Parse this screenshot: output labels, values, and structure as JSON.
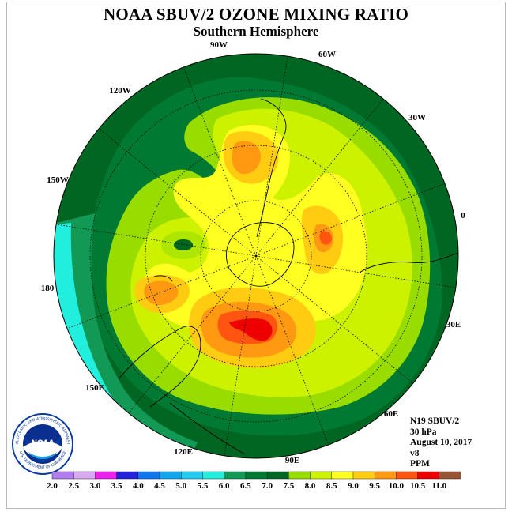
{
  "title": "NOAA SBUV/2 OZONE MIXING RATIO",
  "subtitle": "Southern Hemisphere",
  "longitude_labels": [
    "90W",
    "60W",
    "30W",
    "0",
    "30E",
    "60E",
    "90E",
    "120E",
    "150E",
    "180",
    "150W",
    "120W"
  ],
  "info": {
    "satellite": "N19 SBUV/2",
    "level": "30 hPa",
    "date": "August 10, 2017",
    "version": "v8",
    "units": "PPM"
  },
  "logo": {
    "text": "NOAA",
    "ring_text": "NATIONAL OCEANIC AND ATMOSPHERIC ADMINISTRATION",
    "ring_text_bottom": "U.S. DEPARTMENT OF COMMERCE"
  },
  "colorbar": {
    "ticks": [
      "2.0",
      "2.5",
      "3.0",
      "3.5",
      "4.0",
      "4.5",
      "5.0",
      "5.5",
      "6.0",
      "6.5",
      "7.0",
      "7.5",
      "8.0",
      "8.5",
      "9.0",
      "9.5",
      "10.0",
      "10.5",
      "11.0"
    ],
    "colors": [
      "#b07cf0",
      "#d8a8f0",
      "#ee22ee",
      "#2222dd",
      "#1177ee",
      "#11a7ee",
      "#22ccee",
      "#22eedd",
      "#119955",
      "#007a33",
      "#006622",
      "#99dd00",
      "#ccf200",
      "#ffff22",
      "#ffcc11",
      "#ff9911",
      "#ff5511",
      "#ee0000",
      "#995533"
    ]
  }
}
